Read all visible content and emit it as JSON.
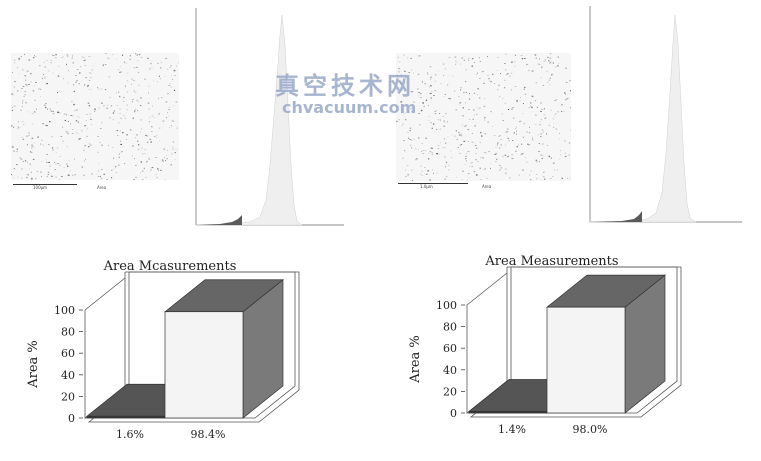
{
  "watermark": {
    "cn": "真空技术网",
    "url": "chvacuum.com"
  },
  "left": {
    "micrograph": {
      "scale_label": "100μm",
      "caption": "Area"
    },
    "chart_data": {
      "type": "bar",
      "title": "Area Mcasurements",
      "ylabel": "Area %",
      "ylim": [
        0,
        100
      ],
      "yticks": [
        "0",
        "20",
        "40",
        "60",
        "80",
        "100"
      ],
      "categories": [
        "1.6%",
        "98.4%"
      ],
      "values": [
        1.6,
        98.4
      ],
      "colors": [
        "#3a3a3a",
        "#f4f4f4"
      ],
      "side_colors": [
        "#2a2a2a",
        "#7a7a7a"
      ],
      "top_colors": [
        "#555555",
        "#666666"
      ]
    }
  },
  "right": {
    "micrograph": {
      "scale_label": "1.0μm",
      "caption": "Area"
    },
    "chart_data": {
      "type": "bar",
      "title": "Area Measurements",
      "ylabel": "Area %",
      "ylim": [
        0,
        100
      ],
      "yticks": [
        "0",
        "20",
        "40",
        "60",
        "80",
        "100"
      ],
      "categories": [
        "1.4%",
        "98.0%"
      ],
      "values": [
        1.4,
        98.0
      ],
      "colors": [
        "#3a3a3a",
        "#f4f4f4"
      ],
      "side_colors": [
        "#2a2a2a",
        "#7a7a7a"
      ],
      "top_colors": [
        "#555555",
        "#666666"
      ]
    }
  }
}
